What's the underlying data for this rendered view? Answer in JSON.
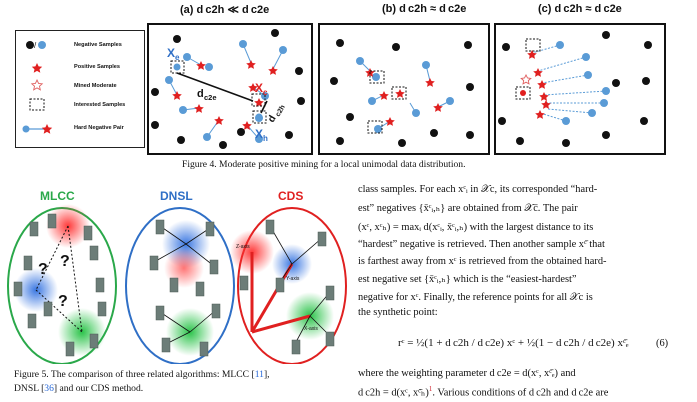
{
  "fig4": {
    "panel_a_title": "(a) d c2h ≪ d c2e",
    "panel_b_title": "(b) d c2h ≈ d c2e",
    "panel_c_title": "(c) d c2h ≈ d c2e",
    "legend": [
      {
        "label": "Negative Samples",
        "icon": "black-and-blue-dots"
      },
      {
        "label": "Positive Samples",
        "icon": "red-star"
      },
      {
        "label": "Mined Moderate",
        "icon": "hollow-red-star"
      },
      {
        "label": "Interested Samples",
        "icon": "dashed-square"
      },
      {
        "label": "Hard Negative Pair",
        "icon": "dot-line-star"
      }
    ],
    "labels": {
      "xe": "X",
      "xe_sub": "e",
      "xc": "X",
      "xc_sub": "c",
      "xh": "X",
      "xh_sub": "h",
      "dc2e": "d",
      "dc2e_sub": "c2e",
      "dc2h": "d",
      "dc2h_sub": "c2h"
    },
    "caption": "Figure 4.  Moderate positive mining for a local unimodal data distribution."
  },
  "fig5": {
    "labels": [
      "MLCC",
      "DNSL",
      "CDS"
    ],
    "colors": {
      "MLCC": "#2aa84a",
      "DNSL": "#2f6fc6",
      "CDS": "#e02020"
    },
    "axis_labels": {
      "x": "X-axis",
      "y": "Y-axis",
      "z": "Z-axis"
    },
    "caption_line1_a": "Figure 5. The comparison of three related algorithms: MLCC [",
    "caption_ref1": "11",
    "caption_line1_b": "],",
    "caption_line2_a": "DNSL [",
    "caption_ref2": "36",
    "caption_line2_b": "] and our CDS method."
  },
  "body": {
    "line1": "class samples.  For each xᶜᵢ in 𝒳c, its corresponded “hard-",
    "line2": "est” negatives {x̄ᶜᵢ,ₕ} are obtained from 𝒳c̄.  The pair",
    "line3": "(xᶜ, xᶜₕ) = maxᵢ d(xᶜᵢ, x̄ᶜᵢ,ₕ) with the largest distance to its",
    "line4": "“hardest” negative is retrieved. Then another sample xᶜ̄ that",
    "line5": "is farthest away from xᶜ is retrieved from the obtained hard-",
    "line6": "est negative set {x̄ᶜᵢ,ₕ} which is the “easiest-hardest”",
    "line7": "negative for xᶜ.  Finally, the reference points for all 𝒳c is",
    "line8": "the synthetic point:",
    "equation": "rᶜ = ½(1 + d c2h / d c2e) xᶜ + ½(1 − d c2h / d c2e) xᶜ̄ₑ",
    "eq_number": "(6)",
    "line9": "where the weighting parameter d c2e  =  d(xᶜ, xᶜ̄ₑ)  and",
    "line10a": "d c2h = d(xᶜ, xᶜ̄ₕ)",
    "line10_ref": "1",
    "line10b": ". Various conditions of d c2h and d c2e are"
  }
}
